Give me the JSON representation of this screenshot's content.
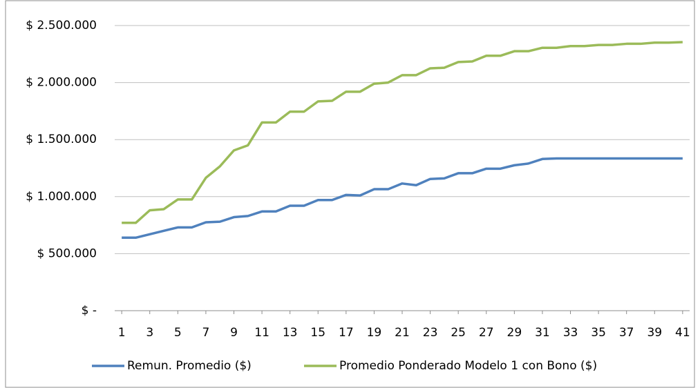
{
  "chart_data": {
    "type": "line",
    "x": [
      1,
      2,
      3,
      4,
      5,
      6,
      7,
      8,
      9,
      10,
      11,
      12,
      13,
      14,
      15,
      16,
      17,
      18,
      19,
      20,
      21,
      22,
      23,
      24,
      25,
      26,
      27,
      28,
      29,
      30,
      31,
      32,
      33,
      34,
      35,
      36,
      37,
      38,
      39,
      40,
      41
    ],
    "xlim": [
      0.5,
      41.5
    ],
    "xticks": [
      1,
      3,
      5,
      7,
      9,
      11,
      13,
      15,
      17,
      19,
      21,
      23,
      25,
      27,
      29,
      31,
      33,
      35,
      37,
      39,
      41
    ],
    "ylim": [
      0,
      2500000
    ],
    "yticks": [
      {
        "value": 0,
        "label": "$ -"
      },
      {
        "value": 500000,
        "label": "$ 500.000"
      },
      {
        "value": 1000000,
        "label": "$ 1.000.000"
      },
      {
        "value": 1500000,
        "label": "$ 1.500.000"
      },
      {
        "value": 2000000,
        "label": "$ 2.000.000"
      },
      {
        "value": 2500000,
        "label": "$ 2.500.000"
      }
    ],
    "grid": true,
    "legend": "bottom",
    "series": [
      {
        "name": "Remun. Promedio ($)",
        "color": "#4f81bd",
        "values": [
          640000,
          640000,
          670000,
          700000,
          730000,
          730000,
          775000,
          780000,
          820000,
          830000,
          870000,
          870000,
          920000,
          920000,
          970000,
          970000,
          1015000,
          1010000,
          1065000,
          1065000,
          1115000,
          1100000,
          1155000,
          1160000,
          1205000,
          1205000,
          1245000,
          1245000,
          1275000,
          1290000,
          1330000,
          1335000,
          1335000,
          1335000,
          1335000,
          1335000,
          1335000,
          1335000,
          1335000,
          1335000,
          1335000
        ]
      },
      {
        "name": "Promedio Ponderado Modelo 1 con Bono ($)",
        "color": "#9bbb59",
        "values": [
          770000,
          770000,
          880000,
          890000,
          975000,
          975000,
          1165000,
          1265000,
          1405000,
          1450000,
          1650000,
          1650000,
          1745000,
          1745000,
          1835000,
          1840000,
          1920000,
          1920000,
          1990000,
          2000000,
          2065000,
          2065000,
          2125000,
          2130000,
          2180000,
          2185000,
          2235000,
          2235000,
          2275000,
          2275000,
          2305000,
          2305000,
          2320000,
          2320000,
          2330000,
          2330000,
          2340000,
          2340000,
          2350000,
          2350000,
          2355000
        ]
      }
    ]
  }
}
